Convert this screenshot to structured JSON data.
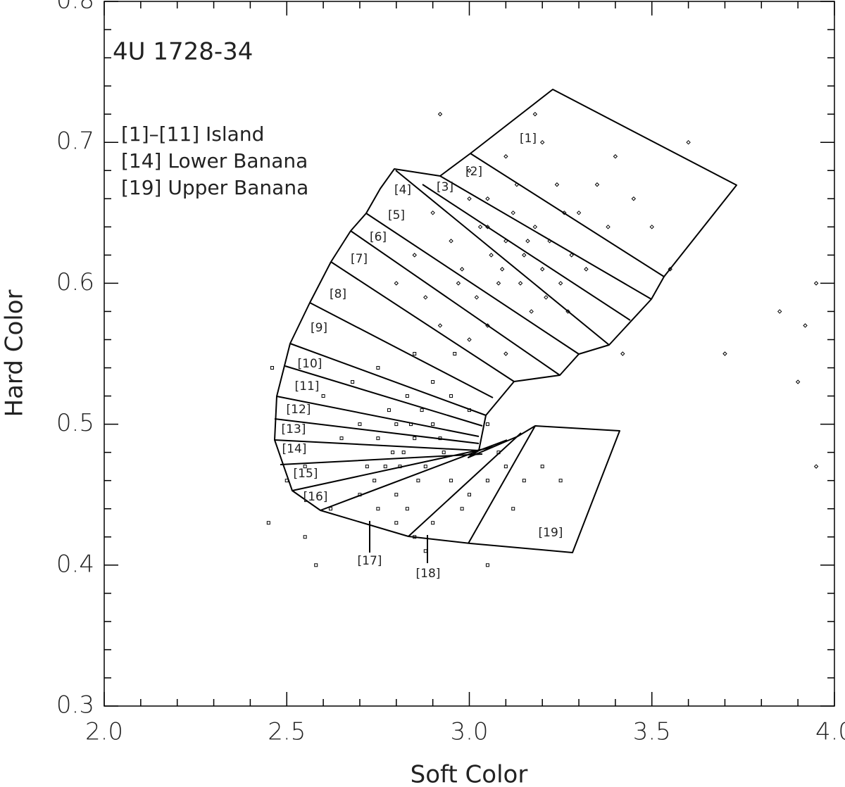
{
  "chart_data": {
    "type": "scatter",
    "title": "4U 1728-34",
    "xlabel": "Soft Color",
    "ylabel": "Hard Color",
    "xlim": [
      2,
      4
    ],
    "ylim": [
      0.3,
      0.8
    ],
    "xticks": [
      {
        "value": 2,
        "label": "2.0"
      },
      2.5,
      {
        "value": 3,
        "label": "3.0"
      },
      3.5,
      {
        "value": 4,
        "label": "4.0"
      }
    ],
    "xminorticks": [
      2.1,
      2.2,
      2.3,
      2.4,
      2.6,
      2.7,
      2.8,
      2.9,
      3.1,
      3.2,
      3.3,
      3.4,
      3.6,
      3.7,
      3.8,
      3.9
    ],
    "yticks": [
      0.3,
      0.4,
      0.5,
      0.6,
      0.7,
      0.8
    ],
    "yminorticks": [
      0.32,
      0.34,
      0.36,
      0.38,
      0.42,
      0.44,
      0.46,
      0.48,
      0.52,
      0.54,
      0.56,
      0.58,
      0.62,
      0.64,
      0.66,
      0.68,
      0.72,
      0.74,
      0.76,
      0.78
    ],
    "legend_text": [
      "[1]–[11] Island",
      "[14] Lower Banana",
      "[19] Upper Banana"
    ],
    "region_labels": [
      "[1]",
      "[2]",
      "[3]",
      "[4]",
      "[5]",
      "[6]",
      "[7]",
      "[8]",
      "[9]",
      "[10]",
      "[11]",
      "[12]",
      "[13]",
      "[14]",
      "[15]",
      "[16]",
      "[17]",
      "[18]",
      "[19]"
    ],
    "series": [
      {
        "marker": "diamond",
        "color": "#000000",
        "x": [
          3.0,
          3.05,
          3.1,
          3.15,
          3.2,
          3.12,
          3.08,
          3.18,
          3.22,
          3.25,
          2.95,
          2.98,
          3.02,
          3.06,
          3.14,
          3.17,
          3.28,
          3.3,
          3.35,
          3.4,
          3.2,
          3.1,
          3.0,
          2.9,
          2.85,
          2.88,
          2.92,
          3.0,
          3.05,
          3.1,
          3.24,
          3.32,
          3.38,
          3.45,
          3.5,
          3.6,
          3.55,
          3.42,
          3.18,
          2.92,
          3.05,
          3.13,
          3.26,
          3.09,
          3.16,
          3.21,
          3.27,
          3.03,
          2.97,
          3.92,
          3.85,
          3.95,
          3.9,
          3.95,
          3.7,
          2.8
        ],
        "y": [
          0.66,
          0.64,
          0.63,
          0.62,
          0.61,
          0.65,
          0.6,
          0.64,
          0.63,
          0.6,
          0.63,
          0.61,
          0.59,
          0.62,
          0.6,
          0.58,
          0.62,
          0.65,
          0.67,
          0.69,
          0.7,
          0.69,
          0.68,
          0.65,
          0.62,
          0.59,
          0.57,
          0.56,
          0.57,
          0.55,
          0.67,
          0.61,
          0.64,
          0.66,
          0.64,
          0.7,
          0.61,
          0.55,
          0.72,
          0.72,
          0.66,
          0.67,
          0.65,
          0.61,
          0.63,
          0.59,
          0.58,
          0.64,
          0.6,
          0.57,
          0.58,
          0.6,
          0.53,
          0.47,
          0.55,
          0.6
        ]
      },
      {
        "marker": "square",
        "color": "#000000",
        "x": [
          2.8,
          2.85,
          2.82,
          2.78,
          2.88,
          2.9,
          2.75,
          2.83,
          2.86,
          2.8,
          2.72,
          2.7,
          2.65,
          2.6,
          2.93,
          2.95,
          2.98,
          3.0,
          3.05,
          3.1,
          3.15,
          3.2,
          3.25,
          2.9,
          2.85,
          2.8,
          2.75,
          2.7,
          2.68,
          2.75,
          2.85,
          2.9,
          2.95,
          3.0,
          3.05,
          2.55,
          2.5,
          2.46,
          2.45,
          2.58,
          2.55,
          3.05,
          2.88,
          2.77,
          2.84,
          2.81,
          2.87,
          2.79,
          2.92,
          2.62,
          3.08,
          3.12,
          2.96,
          2.74,
          2.83
        ],
        "y": [
          0.5,
          0.49,
          0.48,
          0.51,
          0.47,
          0.5,
          0.49,
          0.52,
          0.46,
          0.45,
          0.47,
          0.5,
          0.49,
          0.52,
          0.48,
          0.46,
          0.44,
          0.45,
          0.46,
          0.47,
          0.46,
          0.47,
          0.46,
          0.43,
          0.42,
          0.43,
          0.44,
          0.45,
          0.53,
          0.54,
          0.55,
          0.53,
          0.52,
          0.51,
          0.5,
          0.47,
          0.46,
          0.54,
          0.43,
          0.4,
          0.42,
          0.4,
          0.41,
          0.47,
          0.5,
          0.47,
          0.51,
          0.48,
          0.49,
          0.44,
          0.48,
          0.44,
          0.55,
          0.46,
          0.44
        ]
      }
    ]
  }
}
